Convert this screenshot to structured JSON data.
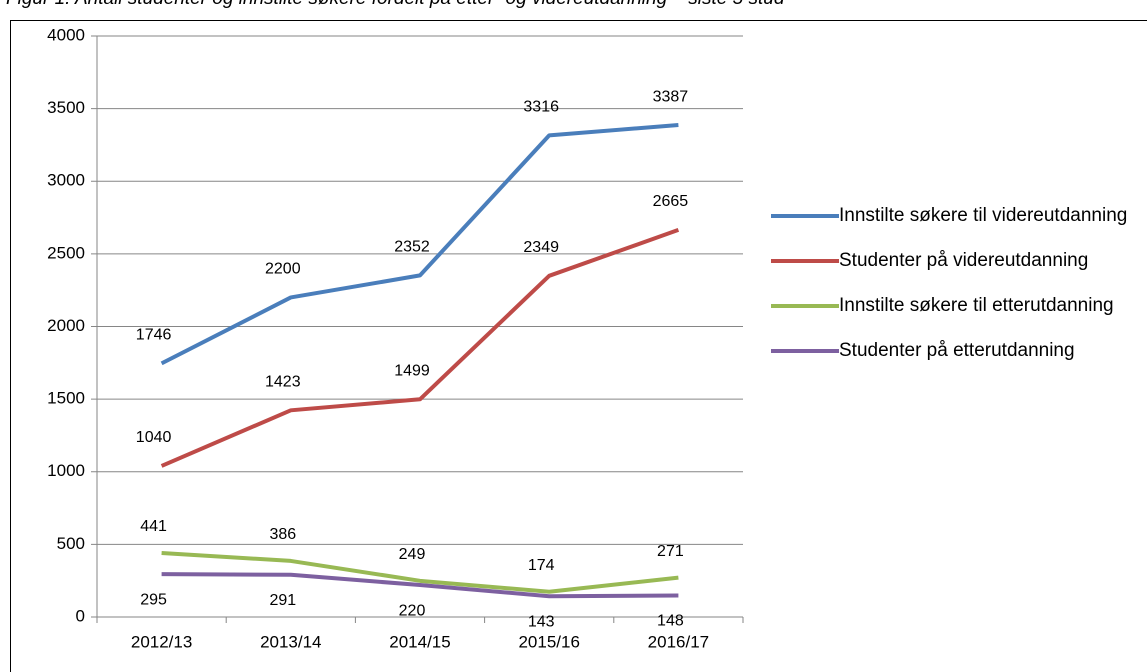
{
  "chart_data": {
    "type": "line",
    "title": "Figur 1: Antall studenter og innstilte søkere fordelt på etter- og videreutdanning – siste 5 stud",
    "categories": [
      "2012/13",
      "2013/14",
      "2014/15",
      "2015/16",
      "2016/17"
    ],
    "series": [
      {
        "name": "Innstilte søkere til videreutdanning",
        "color": "#4a7ebb",
        "values": [
          1746,
          2200,
          2352,
          3316,
          3387
        ]
      },
      {
        "name": "Studenter på videreutdanning",
        "color": "#be4b48",
        "values": [
          1040,
          1423,
          1499,
          2349,
          2665
        ]
      },
      {
        "name": "Innstilte søkere til etterutdanning",
        "color": "#98b954",
        "values": [
          441,
          386,
          249,
          174,
          271
        ]
      },
      {
        "name": "Studenter på etterutdanning",
        "color": "#7d60a0",
        "values": [
          295,
          291,
          220,
          143,
          148
        ]
      }
    ],
    "ylim": [
      0,
      4000
    ],
    "yticks": [
      0,
      500,
      1000,
      1500,
      2000,
      2500,
      3000,
      3500,
      4000
    ],
    "grid": true,
    "legend": "right"
  }
}
